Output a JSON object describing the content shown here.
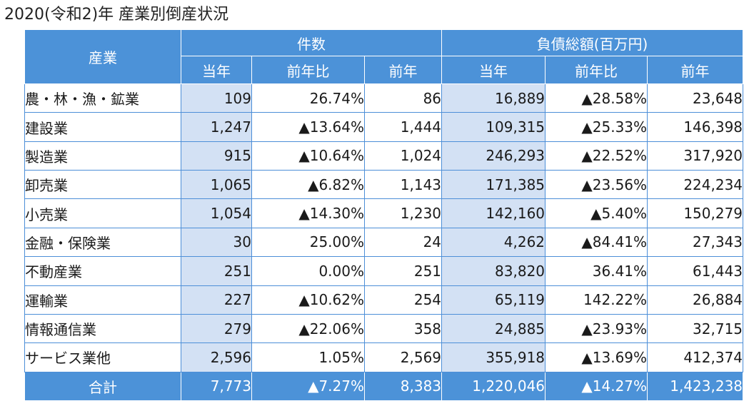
{
  "title": "2020(令和2)年 産業別倒産状況",
  "header": {
    "industry": "産業",
    "group_count": "件数",
    "group_debt": "負債総額(百万円)",
    "current_year": "当年",
    "yoy": "前年比",
    "previous_year": "前年"
  },
  "rows": [
    {
      "industry": "農・林・漁・鉱業",
      "count_cur": "109",
      "count_yoy": "26.74%",
      "count_prev": "86",
      "debt_cur": "16,889",
      "debt_yoy": "▲28.58%",
      "debt_prev": "23,648"
    },
    {
      "industry": "建設業",
      "count_cur": "1,247",
      "count_yoy": "▲13.64%",
      "count_prev": "1,444",
      "debt_cur": "109,315",
      "debt_yoy": "▲25.33%",
      "debt_prev": "146,398"
    },
    {
      "industry": "製造業",
      "count_cur": "915",
      "count_yoy": "▲10.64%",
      "count_prev": "1,024",
      "debt_cur": "246,293",
      "debt_yoy": "▲22.52%",
      "debt_prev": "317,920"
    },
    {
      "industry": "卸売業",
      "count_cur": "1,065",
      "count_yoy": "▲6.82%",
      "count_prev": "1,143",
      "debt_cur": "171,385",
      "debt_yoy": "▲23.56%",
      "debt_prev": "224,234"
    },
    {
      "industry": "小売業",
      "count_cur": "1,054",
      "count_yoy": "▲14.30%",
      "count_prev": "1,230",
      "debt_cur": "142,160",
      "debt_yoy": "▲5.40%",
      "debt_prev": "150,279"
    },
    {
      "industry": "金融・保険業",
      "count_cur": "30",
      "count_yoy": "25.00%",
      "count_prev": "24",
      "debt_cur": "4,262",
      "debt_yoy": "▲84.41%",
      "debt_prev": "27,343"
    },
    {
      "industry": "不動産業",
      "count_cur": "251",
      "count_yoy": "0.00%",
      "count_prev": "251",
      "debt_cur": "83,820",
      "debt_yoy": "36.41%",
      "debt_prev": "61,443"
    },
    {
      "industry": "運輸業",
      "count_cur": "227",
      "count_yoy": "▲10.62%",
      "count_prev": "254",
      "debt_cur": "65,119",
      "debt_yoy": "142.22%",
      "debt_prev": "26,884"
    },
    {
      "industry": "情報通信業",
      "count_cur": "279",
      "count_yoy": "▲22.06%",
      "count_prev": "358",
      "debt_cur": "24,885",
      "debt_yoy": "▲23.93%",
      "debt_prev": "32,715"
    },
    {
      "industry": "サービス業他",
      "count_cur": "2,596",
      "count_yoy": "1.05%",
      "count_prev": "2,569",
      "debt_cur": "355,918",
      "debt_yoy": "▲13.69%",
      "debt_prev": "412,374"
    }
  ],
  "total": {
    "industry": "合計",
    "count_cur": "7,773",
    "count_yoy": "▲7.27%",
    "count_prev": "8,383",
    "debt_cur": "1,220,046",
    "debt_yoy": "▲14.27%",
    "debt_prev": "1,423,238"
  },
  "colors": {
    "header_bg": "#4c92d8",
    "current_col_bg": "#d3e1f4",
    "border": "#4d8fd8"
  }
}
